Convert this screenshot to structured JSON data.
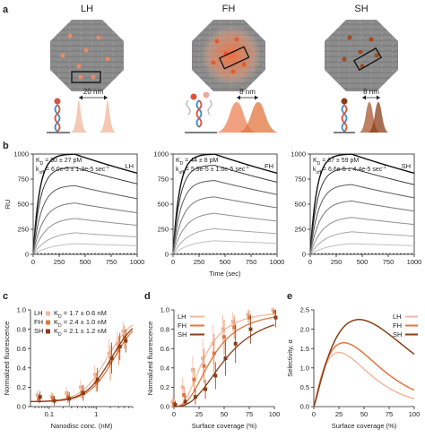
{
  "colors": {
    "LH": "#f2b8a0",
    "FH": "#e2763d",
    "SH": "#8a3d17",
    "origami_grey": "#8c8c8c",
    "dot": "#e88a66",
    "dna_blue": "#3d8ec9",
    "dna_red": "#d9543b"
  },
  "panel_letters": {
    "a": "a",
    "b": "b",
    "c": "c",
    "d": "d",
    "e": "e"
  },
  "panel_a": {
    "items": [
      {
        "label": "LH",
        "distance": "20 nm"
      },
      {
        "label": "FH",
        "distance": "8 nm"
      },
      {
        "label": "SH",
        "distance": "8 nm"
      }
    ]
  },
  "chart_data": [
    {
      "id": "b-LH",
      "type": "line",
      "title": "LH",
      "ylabel": "RU",
      "xlabel": "",
      "xlim": [
        0,
        1000
      ],
      "ylim": [
        0,
        1000
      ],
      "xticks": [
        0,
        250,
        500,
        750,
        1000
      ],
      "yticks": [
        0,
        250,
        500,
        750,
        1000
      ],
      "annotation": {
        "kd_label": "K",
        "kd_sub": "D",
        "kd_value": " = 90 ± 27 pM",
        "koff_label": "k",
        "koff_sub": "off",
        "koff_value": " = 6.0e-5 ± 1.3e-5 sec",
        "koff_sup": "-1"
      },
      "plateaus": [
        1000,
        870,
        690,
        520,
        370,
        230,
        120
      ],
      "assoc_end": 400
    },
    {
      "id": "b-FH",
      "type": "line",
      "title": "FH",
      "ylabel": "",
      "xlabel": "Time (sec)",
      "xlim": [
        0,
        1000
      ],
      "ylim": [
        0,
        1000
      ],
      "xticks": [
        0,
        250,
        500,
        750,
        1000
      ],
      "yticks": [
        0,
        250,
        500,
        750,
        1000
      ],
      "annotation": {
        "kd_label": "K",
        "kd_sub": "D",
        "kd_value": " = 44 ± 8 pM",
        "koff_label": "k",
        "koff_sub": "off",
        "koff_value": " = 5.9e-5 ± 1.0e-5 sec",
        "koff_sup": "-1"
      },
      "plateaus": [
        1000,
        890,
        740,
        580,
        420,
        270,
        150
      ],
      "assoc_end": 400
    },
    {
      "id": "b-SH",
      "type": "line",
      "title": "SH",
      "ylabel": "",
      "xlabel": "",
      "xlim": [
        0,
        1000
      ],
      "ylim": [
        0,
        1000
      ],
      "xticks": [
        0,
        250,
        500,
        750,
        1000
      ],
      "yticks": [
        0,
        250,
        500,
        750,
        1000
      ],
      "annotation": {
        "kd_label": "K",
        "kd_sub": "D",
        "kd_value": " = 87 ± 59 pM",
        "koff_label": "k",
        "koff_sub": "off",
        "koff_value": " = 6.6e-5 ± 4.4e-5 sec",
        "koff_sup": "-1"
      },
      "plateaus": [
        1000,
        860,
        700,
        540,
        380,
        240,
        120
      ],
      "assoc_end": 400
    },
    {
      "id": "c",
      "type": "scatter",
      "xscale": "log",
      "xlabel": "Nanodisc conc. (nM)",
      "ylabel": "Normalized fluorescence",
      "xlim": [
        0.04,
        6
      ],
      "ylim": [
        0,
        1.0
      ],
      "xticks": [
        0.1,
        1
      ],
      "xtick_labels": [
        "0.1",
        "1"
      ],
      "yticks": [
        0,
        0.2,
        0.4,
        0.6,
        0.8,
        1.0
      ],
      "ytick_labels": [
        "0.0",
        "0.2",
        "0.4",
        "0.6",
        "0.8",
        "1.0"
      ],
      "legend": [
        {
          "name": "LH",
          "k": "K",
          "sub": "D",
          "value": "= 1.7 ± 0.6 nM"
        },
        {
          "name": "FH",
          "k": "K",
          "sub": "D",
          "value": "= 2.4 ± 1.0 nM"
        },
        {
          "name": "SH",
          "k": "K",
          "sub": "D",
          "value": "= 2.1 ± 1.2 nM"
        }
      ],
      "series": [
        {
          "name": "LH",
          "kd": 1.7,
          "x": [
            0.06,
            0.12,
            0.25,
            0.5,
            1.0,
            2.0,
            3.0,
            4.0
          ],
          "y": [
            0.12,
            0.1,
            0.14,
            0.2,
            0.33,
            0.55,
            0.65,
            0.78
          ],
          "err": [
            0.05,
            0.05,
            0.06,
            0.08,
            0.1,
            0.15,
            0.12,
            0.1
          ]
        },
        {
          "name": "FH",
          "kd": 2.4,
          "x": [
            0.06,
            0.12,
            0.25,
            0.5,
            1.0,
            2.0,
            3.0,
            4.0
          ],
          "y": [
            0.08,
            0.09,
            0.1,
            0.15,
            0.25,
            0.45,
            0.58,
            0.72
          ],
          "err": [
            0.05,
            0.05,
            0.06,
            0.07,
            0.1,
            0.18,
            0.15,
            0.12
          ]
        },
        {
          "name": "SH",
          "kd": 2.1,
          "x": [
            0.06,
            0.12,
            0.25,
            0.5,
            1.0,
            2.0,
            3.0,
            4.0
          ],
          "y": [
            0.1,
            0.06,
            0.08,
            0.14,
            0.28,
            0.5,
            0.62,
            0.68
          ],
          "err": [
            0.06,
            0.05,
            0.07,
            0.08,
            0.12,
            0.16,
            0.14,
            0.12
          ]
        }
      ]
    },
    {
      "id": "d",
      "type": "scatter",
      "xlabel": "Surface coverage (%)",
      "ylabel": "Normalized fluorescence",
      "xlim": [
        0,
        100
      ],
      "ylim": [
        0,
        1.0
      ],
      "xticks": [
        0,
        25,
        50,
        75,
        100
      ],
      "yticks": [
        0,
        0.2,
        0.4,
        0.6,
        0.8,
        1.0
      ],
      "ytick_labels": [
        "0.0",
        "0.2",
        "0.4",
        "0.6",
        "0.8",
        "1.0"
      ],
      "legend": [
        {
          "name": "LH"
        },
        {
          "name": "FH"
        },
        {
          "name": "SH"
        }
      ],
      "series": [
        {
          "name": "LH",
          "mid": 30,
          "x": [
            0,
            10,
            20,
            30,
            40,
            50,
            60,
            75,
            100
          ],
          "y": [
            0.05,
            0.2,
            0.38,
            0.5,
            0.65,
            0.8,
            0.88,
            0.95,
            1.0
          ],
          "err": [
            0.05,
            0.1,
            0.15,
            0.2,
            0.2,
            0.15,
            0.1,
            0.08,
            0.05
          ]
        },
        {
          "name": "FH",
          "mid": 38,
          "x": [
            0,
            10,
            20,
            30,
            40,
            50,
            60,
            75,
            100
          ],
          "y": [
            0.03,
            0.12,
            0.28,
            0.42,
            0.55,
            0.72,
            0.82,
            0.92,
            0.98
          ],
          "err": [
            0.05,
            0.08,
            0.12,
            0.18,
            0.2,
            0.18,
            0.12,
            0.08,
            0.06
          ]
        },
        {
          "name": "SH",
          "mid": 52,
          "x": [
            0,
            10,
            20,
            30,
            40,
            50,
            60,
            75,
            100
          ],
          "y": [
            0.02,
            0.05,
            0.1,
            0.18,
            0.32,
            0.5,
            0.65,
            0.8,
            0.92
          ],
          "err": [
            0.04,
            0.06,
            0.08,
            0.1,
            0.14,
            0.18,
            0.2,
            0.15,
            0.1
          ]
        }
      ]
    },
    {
      "id": "e",
      "type": "line",
      "xlabel": "Surface coverage (%)",
      "ylabel": "Selectivity, α",
      "xlim": [
        0,
        100
      ],
      "ylim": [
        0,
        2.5
      ],
      "xticks": [
        0,
        25,
        50,
        75,
        100
      ],
      "yticks": [
        0,
        0.5,
        1.0,
        1.5,
        2.0,
        2.5
      ],
      "ytick_labels": [
        "0.0",
        "0.5",
        "1.0",
        "1.5",
        "2.0",
        "2.5"
      ],
      "legend": [
        {
          "name": "LH"
        },
        {
          "name": "FH"
        },
        {
          "name": "SH"
        }
      ],
      "series": [
        {
          "name": "LH",
          "peak_x": 25,
          "peak_y": 1.4
        },
        {
          "name": "FH",
          "peak_x": 30,
          "peak_y": 1.65
        },
        {
          "name": "SH",
          "peak_x": 45,
          "peak_y": 2.25
        }
      ]
    }
  ]
}
